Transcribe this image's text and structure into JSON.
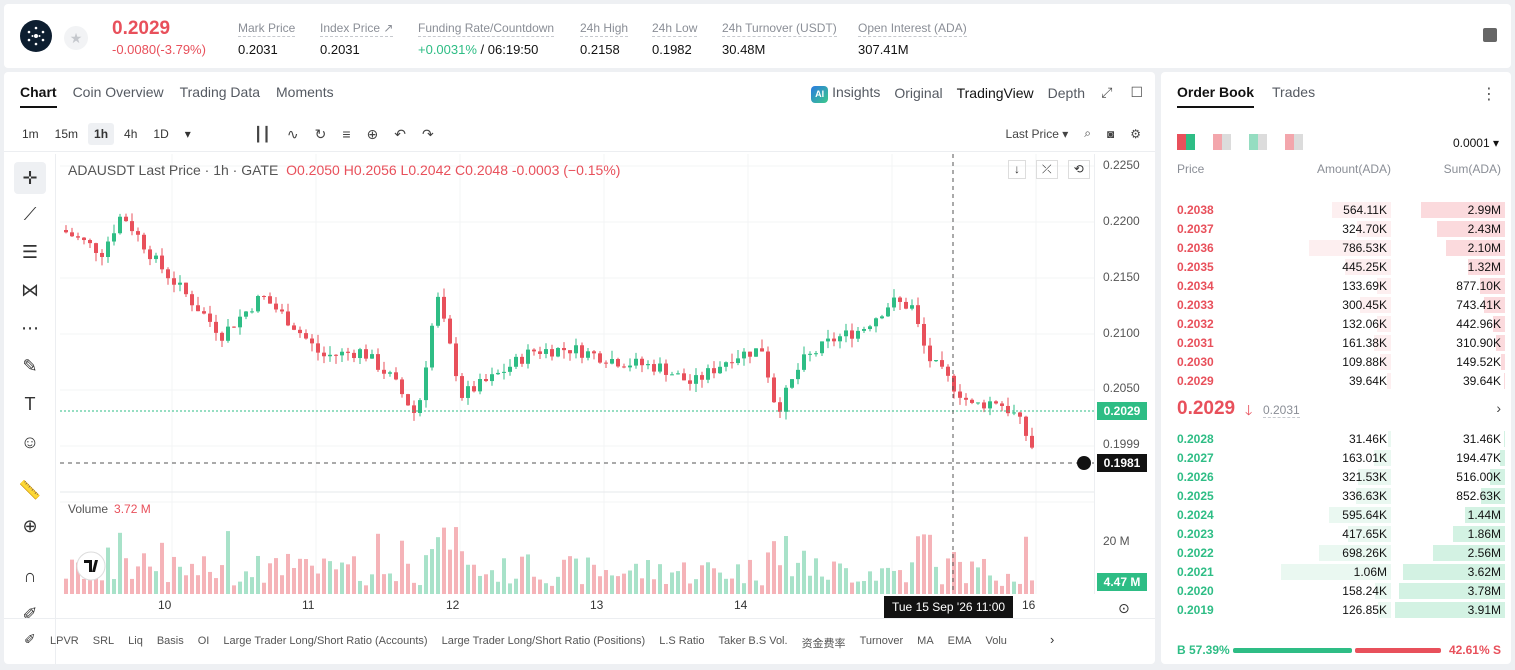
{
  "header": {
    "last_price": "0.2029",
    "change": "-0.0080(-3.79%)",
    "stats": [
      {
        "label": "Mark Price",
        "value": "0.2031"
      },
      {
        "label": "Index Price ↗",
        "value": "0.2031"
      },
      {
        "label": "Funding Rate/Countdown",
        "value_green": "+0.0031%",
        "value": "/ 06:19:50"
      },
      {
        "label": "24h High",
        "value": "0.2158"
      },
      {
        "label": "24h Low",
        "value": "0.1982"
      },
      {
        "label": "24h Turnover (USDT)",
        "value": "30.48M"
      },
      {
        "label": "Open Interest (ADA)",
        "value": "307.41M"
      }
    ]
  },
  "chart_tabs": [
    "Chart",
    "Coin Overview",
    "Trading Data",
    "Moments"
  ],
  "view_tabs": {
    "insights": "Insights",
    "original": "Original",
    "tradingview": "TradingView",
    "depth": "Depth"
  },
  "intervals": [
    "1m",
    "15m",
    "1h",
    "4h",
    "1D"
  ],
  "price_type": "Last Price",
  "legend": {
    "symbol": "ADAUSDT Last Price · 1h · GATE",
    "o": "O0.2050",
    "h": "H0.2056",
    "l": "L0.2042",
    "c": "C0.2048",
    "chg": "-0.0003 (−0.15%)"
  },
  "volume_legend": {
    "label": "Volume",
    "value": "3.72 M"
  },
  "price_ticks": [
    "0.2250",
    "0.2200",
    "0.2150",
    "0.2100",
    "0.2050",
    "0.1999"
  ],
  "price_tags": {
    "current": "0.2029",
    "cross": "0.1981",
    "volume_axis": "20 M",
    "volume_current": "4.47 M"
  },
  "time_labels": [
    "10",
    "11",
    "12",
    "13",
    "14",
    "16"
  ],
  "cross_time": "Tue 15 Sep '26   11:00",
  "indicators": [
    "LPVR",
    "SRL",
    "Liq",
    "Basis",
    "OI",
    "Large Trader Long/Short Ratio (Accounts)",
    "Large Trader Long/Short Ratio (Positions)",
    "L.S Ratio",
    "Taker B.S Vol.",
    "资金费率",
    "Turnover",
    "MA",
    "EMA",
    "Volu"
  ],
  "colors": {
    "up": "#2ebd85",
    "down": "#e8505b"
  },
  "order_book": {
    "tabs": [
      "Order Book",
      "Trades"
    ],
    "precision": "0.0001",
    "headers": {
      "price": "Price",
      "amount": "Amount(ADA)",
      "sum": "Sum(ADA)"
    },
    "asks": [
      {
        "price": "0.2038",
        "amount": "564.11K",
        "sum": "2.99M"
      },
      {
        "price": "0.2037",
        "amount": "324.70K",
        "sum": "2.43M"
      },
      {
        "price": "0.2036",
        "amount": "786.53K",
        "sum": "2.10M"
      },
      {
        "price": "0.2035",
        "amount": "445.25K",
        "sum": "1.32M"
      },
      {
        "price": "0.2034",
        "amount": "133.69K",
        "sum": "877.10K"
      },
      {
        "price": "0.2033",
        "amount": "300.45K",
        "sum": "743.41K"
      },
      {
        "price": "0.2032",
        "amount": "132.06K",
        "sum": "442.96K"
      },
      {
        "price": "0.2031",
        "amount": "161.38K",
        "sum": "310.90K"
      },
      {
        "price": "0.2030",
        "amount": "109.88K",
        "sum": "149.52K"
      },
      {
        "price": "0.2029",
        "amount": "39.64K",
        "sum": "39.64K"
      }
    ],
    "mid_price": "0.2029",
    "mid_mark": "0.2031",
    "bids": [
      {
        "price": "0.2028",
        "amount": "31.46K",
        "sum": "31.46K"
      },
      {
        "price": "0.2027",
        "amount": "163.01K",
        "sum": "194.47K"
      },
      {
        "price": "0.2026",
        "amount": "321.53K",
        "sum": "516.00K"
      },
      {
        "price": "0.2025",
        "amount": "336.63K",
        "sum": "852.63K"
      },
      {
        "price": "0.2024",
        "amount": "595.64K",
        "sum": "1.44M"
      },
      {
        "price": "0.2023",
        "amount": "417.65K",
        "sum": "1.86M"
      },
      {
        "price": "0.2022",
        "amount": "698.26K",
        "sum": "2.56M"
      },
      {
        "price": "0.2021",
        "amount": "1.06M",
        "sum": "3.62M"
      },
      {
        "price": "0.2020",
        "amount": "158.24K",
        "sum": "3.78M"
      },
      {
        "price": "0.2019",
        "amount": "126.85K",
        "sum": "3.91M"
      }
    ],
    "buy_ratio": "B 57.39%",
    "sell_ratio": "42.61% S",
    "buy_fraction": 0.5739
  }
}
